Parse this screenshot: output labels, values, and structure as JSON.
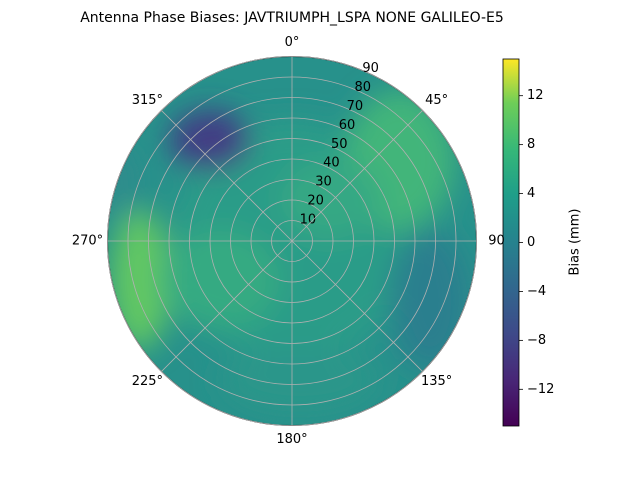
{
  "chart_data": {
    "type": "polar-contour",
    "title": "Antenna Phase Biases: JAVTRIUMPH_LSPA NONE GALILEO-E5",
    "rlim": [
      0,
      90
    ],
    "rticks": [
      10,
      20,
      30,
      40,
      50,
      60,
      70,
      80,
      90
    ],
    "thetaticks": [
      {
        "value": 0,
        "label": "0°"
      },
      {
        "value": 45,
        "label": "45°"
      },
      90,
      {
        "value": 135,
        "label": "135°"
      },
      {
        "value": 180,
        "label": "180°"
      },
      {
        "value": 225,
        "label": "225°"
      },
      {
        "value": 270,
        "label": "270°"
      },
      {
        "value": 315,
        "label": "315°"
      }
    ],
    "grid": true,
    "colorbar": {
      "label": "Bias (mm)",
      "clim": [
        -15,
        15
      ],
      "ticks": [
        {
          "value": -12,
          "label": "−12"
        },
        {
          "value": -8,
          "label": "−8"
        },
        {
          "value": -4,
          "label": "−4"
        },
        0,
        4,
        8,
        12
      ]
    }
  }
}
